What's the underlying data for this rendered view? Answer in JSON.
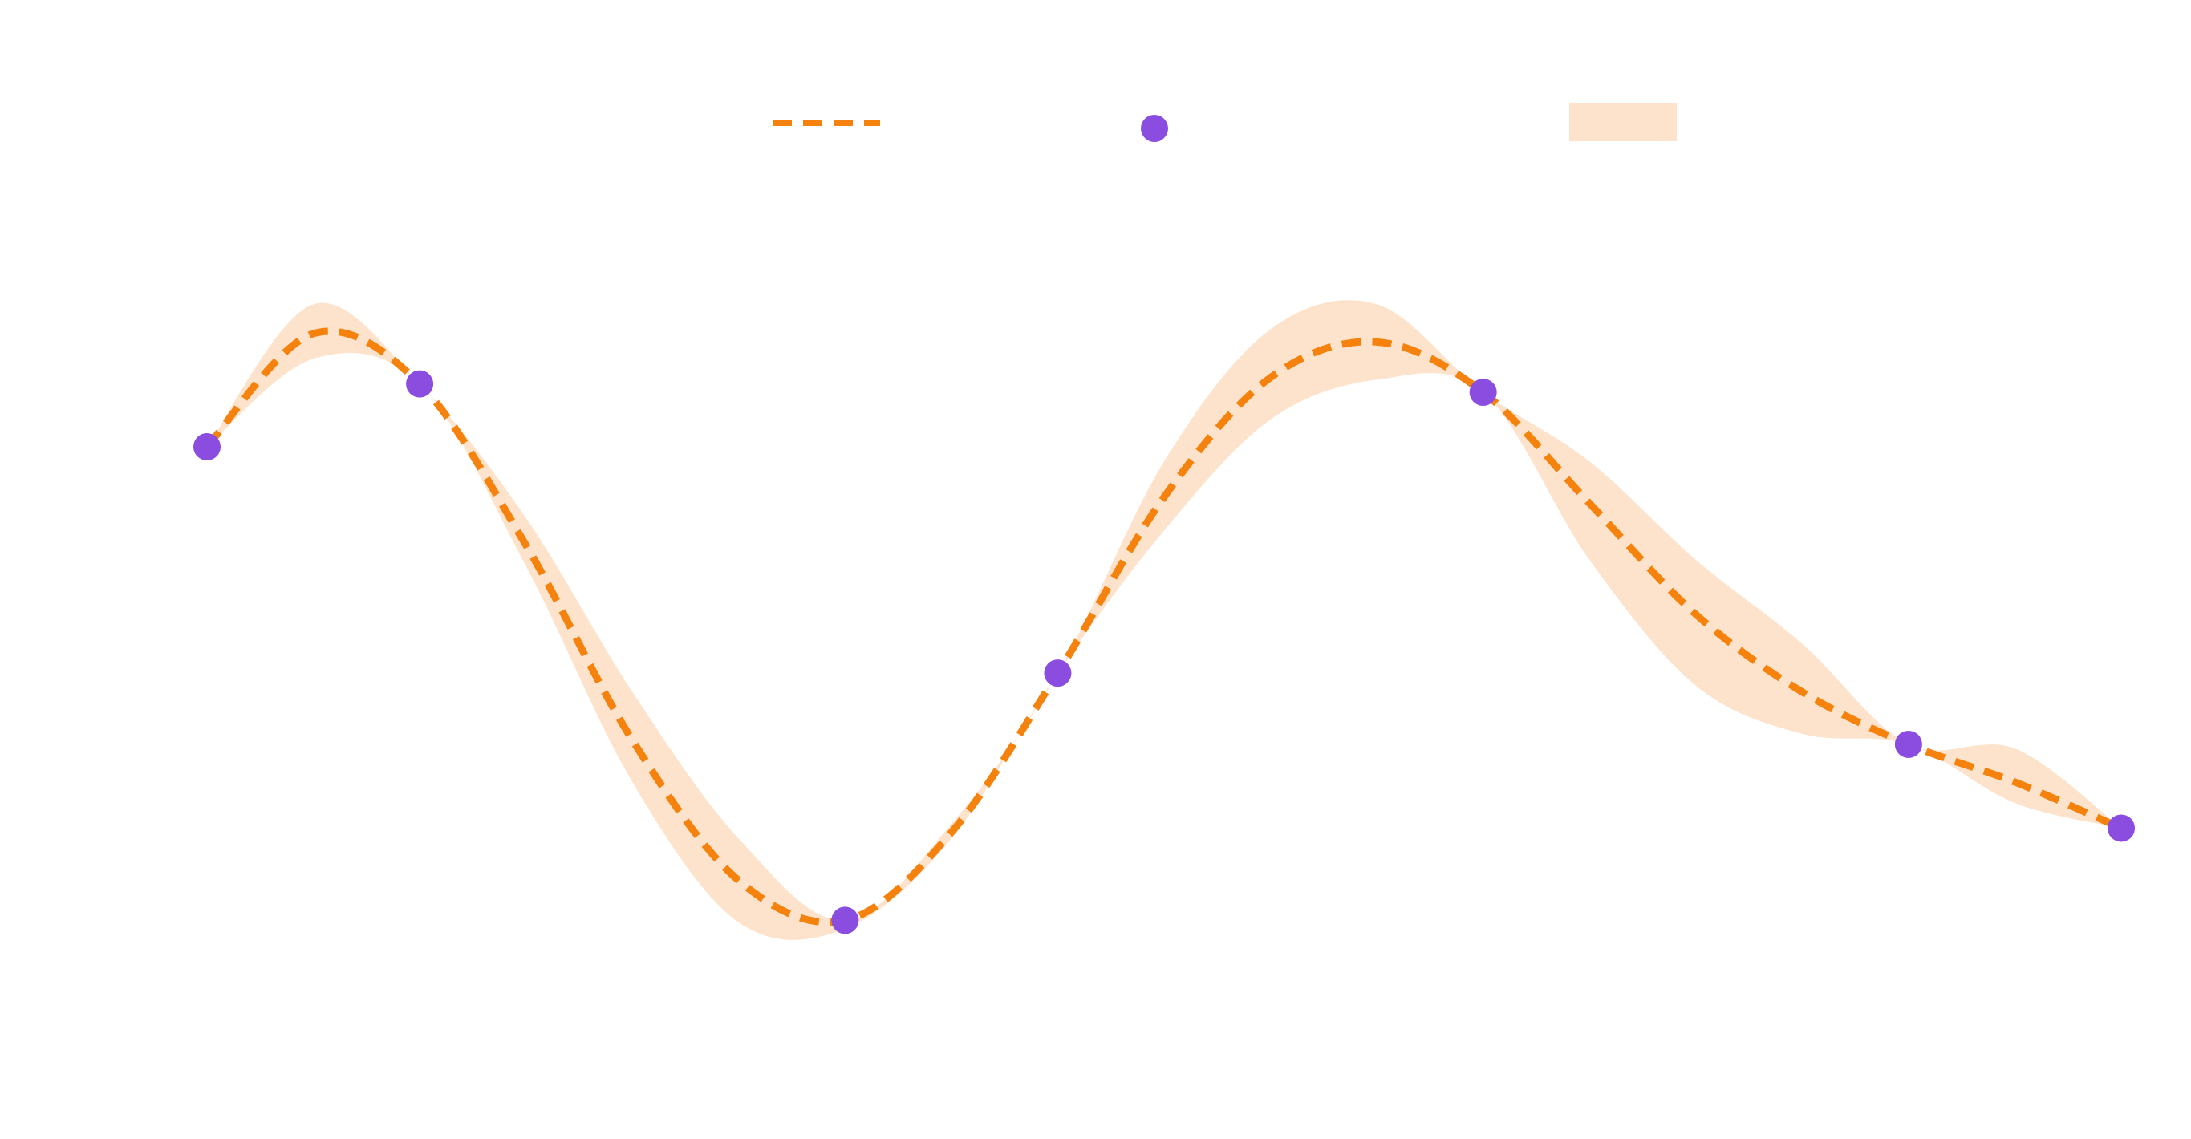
{
  "chart_data": {
    "type": "line",
    "x": [
      0,
      0.5,
      1,
      1.5,
      2,
      2.5,
      3,
      3.5,
      4,
      4.5,
      5,
      5.5,
      6,
      6.5,
      7,
      7.5,
      8,
      8.5,
      9
    ],
    "series": [
      {
        "color": "#f5820d",
        "dashed": true,
        "values": [
          1.07,
          1.61,
          1.37,
          0.6,
          -0.33,
          -1.0,
          -1.19,
          -0.77,
          -0.01,
          0.83,
          1.4,
          1.57,
          1.33,
          0.8,
          0.27,
          -0.1,
          -0.35,
          -0.53,
          -0.75
        ]
      }
    ],
    "band": {
      "color": "#fde3cc",
      "upper": [
        1.07,
        1.75,
        1.37,
        0.73,
        -0.1,
        -0.8,
        -1.19,
        -0.73,
        -0.01,
        1.0,
        1.63,
        1.75,
        1.33,
        1.0,
        0.53,
        0.13,
        -0.35,
        -0.37,
        -0.75
      ],
      "lower": [
        1.07,
        1.49,
        1.37,
        0.5,
        -0.53,
        -1.2,
        -1.23,
        -0.8,
        -0.01,
        0.67,
        1.2,
        1.39,
        1.33,
        0.53,
        -0.07,
        -0.3,
        -0.35,
        -0.63,
        -0.75
      ]
    },
    "points": {
      "color": "#8a4de0",
      "x": [
        0,
        1,
        3,
        4,
        6,
        8,
        9
      ],
      "y": [
        1.07,
        1.37,
        -1.19,
        -0.01,
        1.33,
        -0.35,
        -0.75
      ]
    },
    "xlim": [
      0,
      9
    ],
    "ylim": [
      -2,
      2
    ],
    "legend": "top"
  }
}
